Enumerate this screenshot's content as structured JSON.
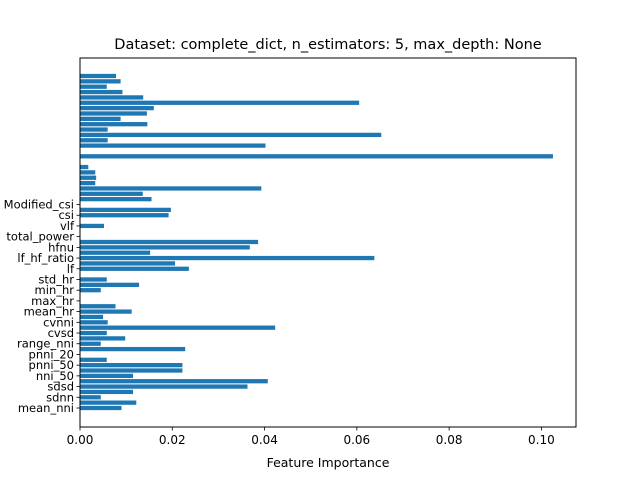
{
  "chart_data": {
    "type": "bar",
    "orientation": "horizontal",
    "title": "Dataset: complete_dict, n_estimators: 5, max_depth: None",
    "xlabel": "Feature Importance",
    "ylabel": "",
    "xlim": [
      0,
      0.1075
    ],
    "xticks": [
      "0.00",
      "0.02",
      "0.04",
      "0.06",
      "0.08",
      "0.10"
    ],
    "xtick_values": [
      0,
      0.02,
      0.04,
      0.06,
      0.08,
      0.1
    ],
    "grid": false,
    "bar_color": "#1f77b4",
    "visible_labels": [
      "mean_nni",
      "sdnn",
      "sdsd",
      "nni_50",
      "pnni_50",
      "pnni_20",
      "range_nni",
      "cvsd",
      "cvnni",
      "mean_hr",
      "max_hr",
      "min_hr",
      "std_hr",
      "lf",
      "lf_hf_ratio",
      "hfnu",
      "total_power",
      "vlf",
      "csi",
      "Modified_csi"
    ],
    "values": [
      0.009,
      0.0122,
      0.0045,
      0.0115,
      0.0363,
      0.0407,
      0.0115,
      0.0222,
      0.0222,
      0.0058,
      0.0,
      0.0228,
      0.0045,
      0.0098,
      0.0058,
      0.0423,
      0.006,
      0.005,
      0.0112,
      0.0077,
      0.0,
      0.0,
      0.0045,
      0.0128,
      0.0058,
      0.0,
      0.0236,
      0.0206,
      0.0638,
      0.0152,
      0.0368,
      0.0386,
      0.0,
      0.0,
      0.0052,
      0.0,
      0.0192,
      0.0197,
      0.0,
      0.0155,
      0.0136,
      0.0393,
      0.0033,
      0.0035,
      0.0033,
      0.0018,
      0.0,
      0.1025,
      0.0,
      0.0402,
      0.006,
      0.0653,
      0.006,
      0.0146,
      0.0088,
      0.0145,
      0.016,
      0.0605,
      0.0137,
      0.0092,
      0.0058,
      0.0088,
      0.0078
    ]
  }
}
